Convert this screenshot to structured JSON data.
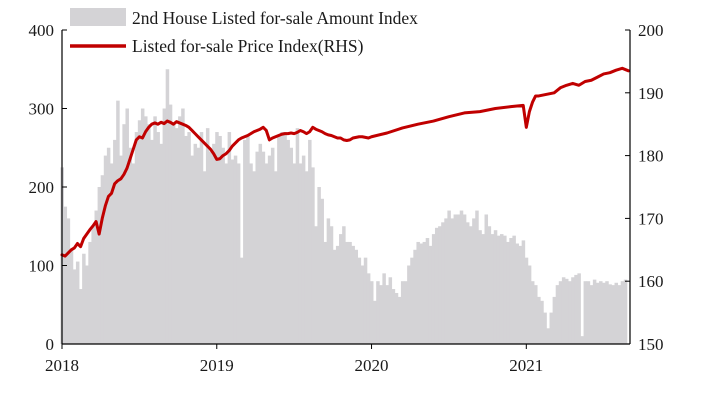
{
  "colors": {
    "bars": "#d4d3d6",
    "line": "#c00000",
    "axis": "#000000"
  },
  "chart_data": {
    "type": "bar+line",
    "title": "",
    "x_range": [
      2018.0,
      2021.67
    ],
    "x_ticks": [
      {
        "value": 2018,
        "label": "2018"
      },
      {
        "value": 2019,
        "label": "2019"
      },
      {
        "value": 2020,
        "label": "2020"
      },
      {
        "value": 2021,
        "label": "2021"
      }
    ],
    "y_left": {
      "range": [
        0,
        400
      ],
      "ticks": [
        {
          "value": 0,
          "label": "0"
        },
        {
          "value": 100,
          "label": "100"
        },
        {
          "value": 200,
          "label": "200"
        },
        {
          "value": 300,
          "label": "300"
        },
        {
          "value": 400,
          "label": "400"
        }
      ]
    },
    "y_right": {
      "range": [
        150,
        200
      ],
      "ticks": [
        {
          "value": 150,
          "label": "150"
        },
        {
          "value": 160,
          "label": "160"
        },
        {
          "value": 170,
          "label": "170"
        },
        {
          "value": 180,
          "label": "180"
        },
        {
          "value": 190,
          "label": "190"
        },
        {
          "value": 200,
          "label": "200"
        }
      ]
    },
    "legend": [
      {
        "name": "2nd House Listed for-sale Amount Index",
        "kind": "bar"
      },
      {
        "name": "Listed for-sale Price Index(RHS)",
        "kind": "line"
      }
    ],
    "series": [
      {
        "name": "2nd House Listed for-sale Amount Index",
        "type": "bar",
        "axis": "left",
        "x": [
          2018.0,
          2018.02,
          2018.04,
          2018.06,
          2018.08,
          2018.1,
          2018.12,
          2018.14,
          2018.16,
          2018.18,
          2018.2,
          2018.22,
          2018.24,
          2018.26,
          2018.28,
          2018.3,
          2018.32,
          2018.34,
          2018.36,
          2018.38,
          2018.4,
          2018.42,
          2018.44,
          2018.46,
          2018.48,
          2018.5,
          2018.52,
          2018.54,
          2018.56,
          2018.58,
          2018.6,
          2018.62,
          2018.64,
          2018.66,
          2018.68,
          2018.7,
          2018.72,
          2018.74,
          2018.76,
          2018.78,
          2018.8,
          2018.82,
          2018.84,
          2018.86,
          2018.88,
          2018.9,
          2018.92,
          2018.94,
          2018.96,
          2018.98,
          2019.0,
          2019.02,
          2019.04,
          2019.06,
          2019.08,
          2019.1,
          2019.12,
          2019.14,
          2019.16,
          2019.18,
          2019.2,
          2019.22,
          2019.24,
          2019.26,
          2019.28,
          2019.3,
          2019.32,
          2019.34,
          2019.36,
          2019.38,
          2019.4,
          2019.42,
          2019.44,
          2019.46,
          2019.48,
          2019.5,
          2019.52,
          2019.54,
          2019.56,
          2019.58,
          2019.6,
          2019.62,
          2019.64,
          2019.66,
          2019.68,
          2019.7,
          2019.72,
          2019.74,
          2019.76,
          2019.78,
          2019.8,
          2019.82,
          2019.84,
          2019.86,
          2019.88,
          2019.9,
          2019.92,
          2019.94,
          2019.96,
          2019.98,
          2020.0,
          2020.02,
          2020.04,
          2020.06,
          2020.08,
          2020.1,
          2020.12,
          2020.14,
          2020.16,
          2020.18,
          2020.2,
          2020.22,
          2020.24,
          2020.26,
          2020.28,
          2020.3,
          2020.32,
          2020.34,
          2020.36,
          2020.38,
          2020.4,
          2020.42,
          2020.44,
          2020.46,
          2020.48,
          2020.5,
          2020.52,
          2020.54,
          2020.56,
          2020.58,
          2020.6,
          2020.62,
          2020.64,
          2020.66,
          2020.68,
          2020.7,
          2020.72,
          2020.74,
          2020.76,
          2020.78,
          2020.8,
          2020.82,
          2020.84,
          2020.86,
          2020.88,
          2020.9,
          2020.92,
          2020.94,
          2020.96,
          2020.98,
          2021.0,
          2021.02,
          2021.04,
          2021.06,
          2021.08,
          2021.1,
          2021.12,
          2021.14,
          2021.16,
          2021.18,
          2021.2,
          2021.22,
          2021.24,
          2021.26,
          2021.28,
          2021.3,
          2021.32,
          2021.34,
          2021.36,
          2021.38,
          2021.4,
          2021.42,
          2021.44,
          2021.46,
          2021.48,
          2021.5,
          2021.52,
          2021.54,
          2021.56,
          2021.58,
          2021.6,
          2021.62,
          2021.64
        ],
        "values": [
          225,
          175,
          160,
          120,
          95,
          105,
          70,
          115,
          100,
          130,
          150,
          170,
          200,
          215,
          240,
          250,
          230,
          260,
          310,
          240,
          280,
          300,
          250,
          230,
          270,
          285,
          300,
          290,
          280,
          260,
          290,
          270,
          255,
          300,
          350,
          305,
          280,
          275,
          290,
          300,
          265,
          270,
          240,
          255,
          250,
          270,
          220,
          275,
          245,
          255,
          270,
          265,
          250,
          230,
          270,
          235,
          240,
          230,
          110,
          260,
          265,
          230,
          220,
          245,
          255,
          245,
          230,
          240,
          250,
          220,
          265,
          270,
          270,
          260,
          250,
          230,
          275,
          230,
          240,
          220,
          260,
          225,
          150,
          200,
          185,
          130,
          160,
          150,
          120,
          125,
          140,
          150,
          130,
          130,
          125,
          120,
          110,
          100,
          110,
          90,
          80,
          55,
          80,
          75,
          90,
          75,
          85,
          70,
          65,
          60,
          80,
          80,
          100,
          110,
          120,
          130,
          128,
          130,
          135,
          125,
          140,
          148,
          150,
          155,
          160,
          170,
          160,
          165,
          165,
          170,
          165,
          155,
          150,
          160,
          170,
          145,
          140,
          165,
          150,
          140,
          145,
          138,
          140,
          138,
          130,
          135,
          138,
          128,
          125,
          132,
          110,
          100,
          80,
          75,
          60,
          55,
          40,
          20,
          40,
          60,
          75,
          80,
          85,
          83,
          80,
          85,
          88,
          90,
          10,
          80,
          80,
          75,
          82,
          78,
          80,
          78,
          80,
          76,
          75,
          78,
          75,
          80,
          82
        ]
      },
      {
        "name": "Listed for-sale Price Index(RHS)",
        "type": "line",
        "axis": "right",
        "x": [
          2018.0,
          2018.02,
          2018.04,
          2018.06,
          2018.08,
          2018.1,
          2018.12,
          2018.14,
          2018.16,
          2018.18,
          2018.2,
          2018.22,
          2018.24,
          2018.26,
          2018.28,
          2018.3,
          2018.32,
          2018.34,
          2018.36,
          2018.38,
          2018.4,
          2018.42,
          2018.44,
          2018.46,
          2018.48,
          2018.5,
          2018.52,
          2018.54,
          2018.56,
          2018.58,
          2018.6,
          2018.62,
          2018.64,
          2018.66,
          2018.68,
          2018.7,
          2018.72,
          2018.74,
          2018.76,
          2018.78,
          2018.8,
          2018.82,
          2018.84,
          2018.86,
          2018.88,
          2018.9,
          2018.92,
          2018.94,
          2018.96,
          2018.98,
          2019.0,
          2019.02,
          2019.04,
          2019.06,
          2019.08,
          2019.1,
          2019.12,
          2019.14,
          2019.16,
          2019.18,
          2019.2,
          2019.22,
          2019.24,
          2019.26,
          2019.28,
          2019.3,
          2019.32,
          2019.34,
          2019.36,
          2019.38,
          2019.4,
          2019.42,
          2019.44,
          2019.46,
          2019.48,
          2019.5,
          2019.52,
          2019.54,
          2019.56,
          2019.58,
          2019.6,
          2019.62,
          2019.64,
          2019.66,
          2019.68,
          2019.7,
          2019.72,
          2019.74,
          2019.76,
          2019.78,
          2019.8,
          2019.82,
          2019.84,
          2019.86,
          2019.88,
          2019.9,
          2019.92,
          2019.94,
          2019.96,
          2019.98,
          2020.0,
          2020.1,
          2020.2,
          2020.3,
          2020.4,
          2020.5,
          2020.6,
          2020.7,
          2020.8,
          2020.9,
          2020.98,
          2021.0,
          2021.02,
          2021.04,
          2021.06,
          2021.08,
          2021.1,
          2021.14,
          2021.18,
          2021.22,
          2021.26,
          2021.3,
          2021.34,
          2021.38,
          2021.42,
          2021.46,
          2021.5,
          2021.54,
          2021.58,
          2021.62,
          2021.66
        ],
        "values": [
          164.2,
          164.0,
          164.5,
          165.0,
          165.3,
          166.0,
          165.5,
          166.8,
          167.5,
          168.2,
          168.8,
          169.5,
          167.5,
          170.0,
          172.0,
          173.5,
          174.0,
          175.5,
          176.0,
          176.3,
          177.0,
          178.0,
          179.5,
          181.0,
          182.5,
          183.0,
          182.8,
          183.8,
          184.5,
          185.0,
          185.2,
          185.0,
          185.3,
          185.1,
          185.5,
          185.3,
          185.0,
          185.4,
          185.2,
          185.0,
          184.8,
          184.5,
          184.0,
          183.5,
          183.0,
          182.5,
          182.0,
          181.5,
          181.0,
          180.3,
          179.4,
          179.5,
          180.0,
          180.3,
          180.8,
          181.5,
          182.0,
          182.5,
          182.8,
          183.0,
          183.2,
          183.5,
          183.8,
          184.0,
          184.2,
          184.5,
          184.0,
          182.5,
          182.8,
          183.0,
          183.2,
          183.4,
          183.5,
          183.5,
          183.6,
          183.5,
          183.7,
          184.0,
          183.8,
          183.5,
          183.8,
          184.5,
          184.2,
          184.0,
          183.8,
          183.5,
          183.3,
          183.2,
          183.0,
          182.8,
          182.8,
          182.5,
          182.4,
          182.5,
          182.8,
          182.9,
          183.0,
          183.0,
          182.9,
          182.8,
          183.0,
          183.6,
          184.4,
          185.0,
          185.5,
          186.2,
          186.8,
          187.0,
          187.5,
          187.8,
          188.0,
          184.5,
          187.0,
          188.5,
          189.5,
          189.5,
          189.6,
          189.8,
          190.0,
          190.8,
          191.2,
          191.5,
          191.2,
          191.8,
          192.0,
          192.5,
          193.0,
          193.2,
          193.6,
          193.9,
          193.5
        ]
      }
    ]
  }
}
